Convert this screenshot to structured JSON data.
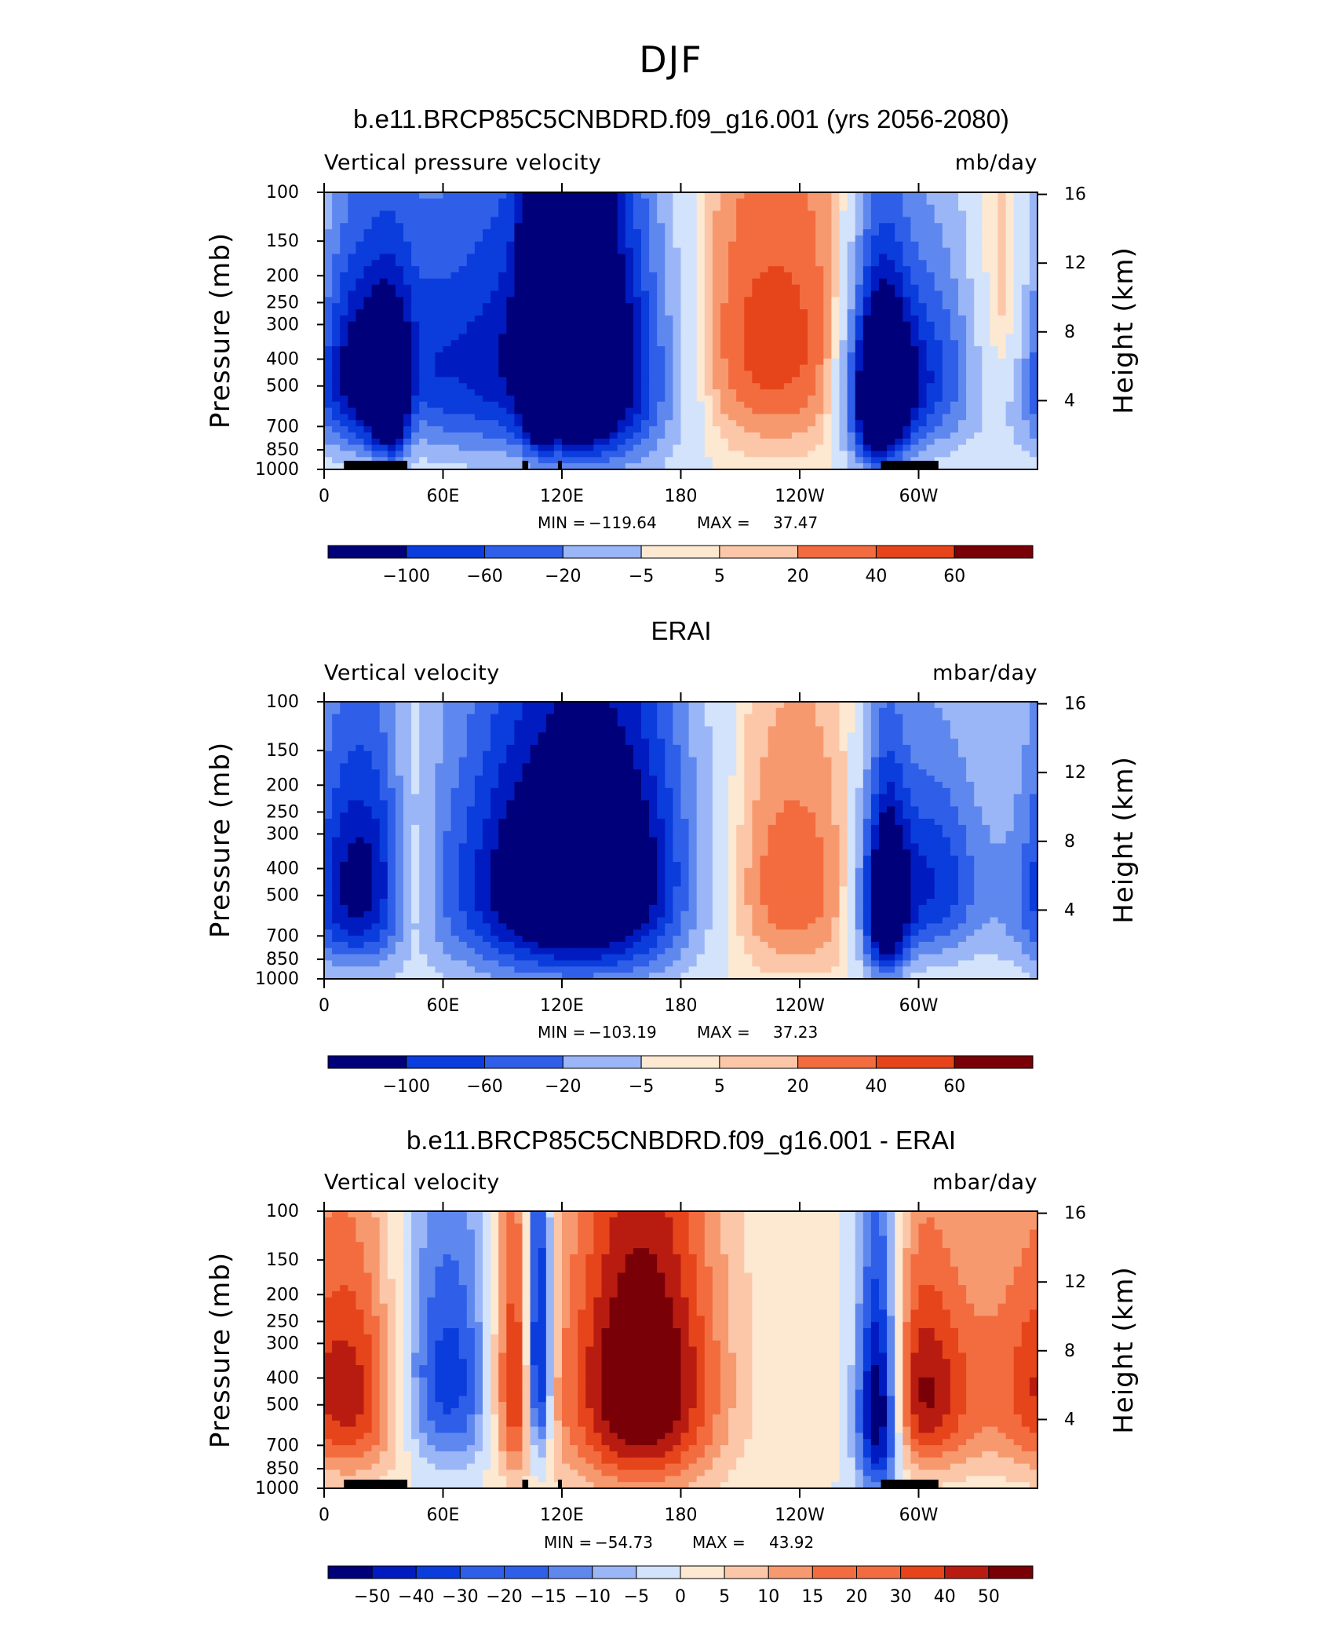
{
  "figure_title": "DJF",
  "colors": {
    "cool": [
      "#00007a",
      "#001cc0",
      "#0a3ddc",
      "#2f5fe8",
      "#5f88ef",
      "#9bb6f6",
      "#d2e3fb"
    ],
    "warm": [
      "#fde8d2",
      "#fcc7a8",
      "#f7996f",
      "#f26c3f",
      "#e6441a",
      "#b81c10",
      "#7a0008"
    ],
    "land": "#000000"
  },
  "chart_data": [
    {
      "type": "heatmap",
      "title": "b.e11.BRCP85C5CNBDRD.f09_g16.001 (yrs 2056-2080)",
      "left_label": "Vertical pressure velocity",
      "units": "mb/day",
      "xlabel": "",
      "ylabel": "Pressure (mb)",
      "y2label": "Height (km)",
      "x_ticks": [
        "0",
        "60E",
        "120E",
        "180",
        "120W",
        "60W"
      ],
      "y_ticks": [
        "100",
        "150",
        "200",
        "250",
        "300",
        "400",
        "500",
        "700",
        "850",
        "1000"
      ],
      "y2_ticks": [
        "16",
        "12",
        "8",
        "4"
      ],
      "min_label": "MIN =",
      "min_value": "−119.64",
      "max_label": "MAX =",
      "max_value": "37.47",
      "colorbar_labels": [
        "−100",
        "−60",
        "−20",
        "−5",
        "5",
        "20",
        "40",
        "60"
      ],
      "ylim": [
        1000,
        100
      ],
      "xlim": [
        0,
        360
      ],
      "cool_scale": 80,
      "warm_scale": 30,
      "features": [
        {
          "lon": 20,
          "p": 450,
          "w": 22,
          "h": 260,
          "v": -75
        },
        {
          "lon": 35,
          "p": 600,
          "w": 8,
          "h": 220,
          "v": -60
        },
        {
          "lon": 45,
          "p": 600,
          "w": 6,
          "h": 220,
          "v": 30
        },
        {
          "lon": 95,
          "p": 400,
          "w": 40,
          "h": 320,
          "v": -65
        },
        {
          "lon": 108,
          "p": 350,
          "w": 5,
          "h": 260,
          "v": -110
        },
        {
          "lon": 125,
          "p": 350,
          "w": 14,
          "h": 300,
          "v": -85
        },
        {
          "lon": 148,
          "p": 450,
          "w": 22,
          "h": 350,
          "v": -55
        },
        {
          "lon": 225,
          "p": 350,
          "w": 45,
          "h": 320,
          "v": 20
        },
        {
          "lon": 280,
          "p": 550,
          "w": 10,
          "h": 280,
          "v": -110
        },
        {
          "lon": 300,
          "p": 450,
          "w": 20,
          "h": 260,
          "v": -60
        },
        {
          "lon": 345,
          "p": 330,
          "w": 12,
          "h": 220,
          "v": 25
        }
      ],
      "land": [
        [
          10,
          42
        ],
        [
          100,
          103
        ],
        [
          118,
          120
        ],
        [
          281,
          310
        ]
      ]
    },
    {
      "type": "heatmap",
      "title": "ERAI",
      "left_label": "Vertical velocity",
      "units": "mbar/day",
      "xlabel": "",
      "ylabel": "Pressure (mb)",
      "y2label": "Height (km)",
      "x_ticks": [
        "0",
        "60E",
        "120E",
        "180",
        "120W",
        "60W"
      ],
      "y_ticks": [
        "100",
        "150",
        "200",
        "250",
        "300",
        "400",
        "500",
        "700",
        "850",
        "1000"
      ],
      "y2_ticks": [
        "16",
        "12",
        "8",
        "4"
      ],
      "min_label": "MIN =",
      "min_value": "−103.19",
      "max_label": "MAX =",
      "max_value": "37.23",
      "colorbar_labels": [
        "−100",
        "−60",
        "−20",
        "−5",
        "5",
        "20",
        "40",
        "60"
      ],
      "ylim": [
        1000,
        100
      ],
      "xlim": [
        0,
        360
      ],
      "cool_scale": 80,
      "warm_scale": 30,
      "features": [
        {
          "lon": 15,
          "p": 450,
          "w": 20,
          "h": 300,
          "v": -75
        },
        {
          "lon": 45,
          "p": 450,
          "w": 8,
          "h": 260,
          "v": 30
        },
        {
          "lon": 105,
          "p": 450,
          "w": 35,
          "h": 350,
          "v": -75
        },
        {
          "lon": 150,
          "p": 420,
          "w": 30,
          "h": 350,
          "v": -70
        },
        {
          "lon": 230,
          "p": 450,
          "w": 40,
          "h": 320,
          "v": 18
        },
        {
          "lon": 283,
          "p": 550,
          "w": 8,
          "h": 280,
          "v": -90
        },
        {
          "lon": 305,
          "p": 450,
          "w": 20,
          "h": 260,
          "v": -60
        },
        {
          "lon": 355,
          "p": 350,
          "w": 12,
          "h": 200,
          "v": 8
        }
      ],
      "land": []
    },
    {
      "type": "heatmap",
      "title": "b.e11.BRCP85C5CNBDRD.f09_g16.001 - ERAI",
      "left_label": "Vertical velocity",
      "units": "mbar/day",
      "xlabel": "",
      "ylabel": "Pressure (mb)",
      "y2label": "Height (km)",
      "x_ticks": [
        "0",
        "60E",
        "120E",
        "180",
        "120W",
        "60W"
      ],
      "y_ticks": [
        "100",
        "150",
        "200",
        "250",
        "300",
        "400",
        "500",
        "700",
        "850",
        "1000"
      ],
      "y2_ticks": [
        "16",
        "12",
        "8",
        "4"
      ],
      "min_label": "MIN =",
      "min_value": "−54.73",
      "max_label": "MAX =",
      "max_value": "43.92",
      "colorbar_labels": [
        "−50",
        "−40",
        "−30",
        "−20",
        "−15",
        "−10",
        "−5",
        "0",
        "5",
        "10",
        "15",
        "20",
        "30",
        "40",
        "50"
      ],
      "ylim": [
        1000,
        100
      ],
      "xlim": [
        0,
        360
      ],
      "cool_scale": 35,
      "warm_scale": 35,
      "features": [
        {
          "lon": 18,
          "p": 450,
          "w": 20,
          "h": 300,
          "v": 25
        },
        {
          "lon": 60,
          "p": 400,
          "w": 20,
          "h": 280,
          "v": -25
        },
        {
          "lon": 98,
          "p": 400,
          "w": 10,
          "h": 320,
          "v": 30
        },
        {
          "lon": 108,
          "p": 350,
          "w": 5,
          "h": 300,
          "v": -50
        },
        {
          "lon": 160,
          "p": 420,
          "w": 28,
          "h": 380,
          "v": 40
        },
        {
          "lon": 280,
          "p": 500,
          "w": 8,
          "h": 320,
          "v": -50
        },
        {
          "lon": 300,
          "p": 450,
          "w": 18,
          "h": 280,
          "v": 30
        },
        {
          "lon": 345,
          "p": 400,
          "w": 22,
          "h": 320,
          "v": 12
        }
      ],
      "land": [
        [
          10,
          42
        ],
        [
          100,
          103
        ],
        [
          118,
          120
        ],
        [
          281,
          310
        ]
      ]
    }
  ]
}
